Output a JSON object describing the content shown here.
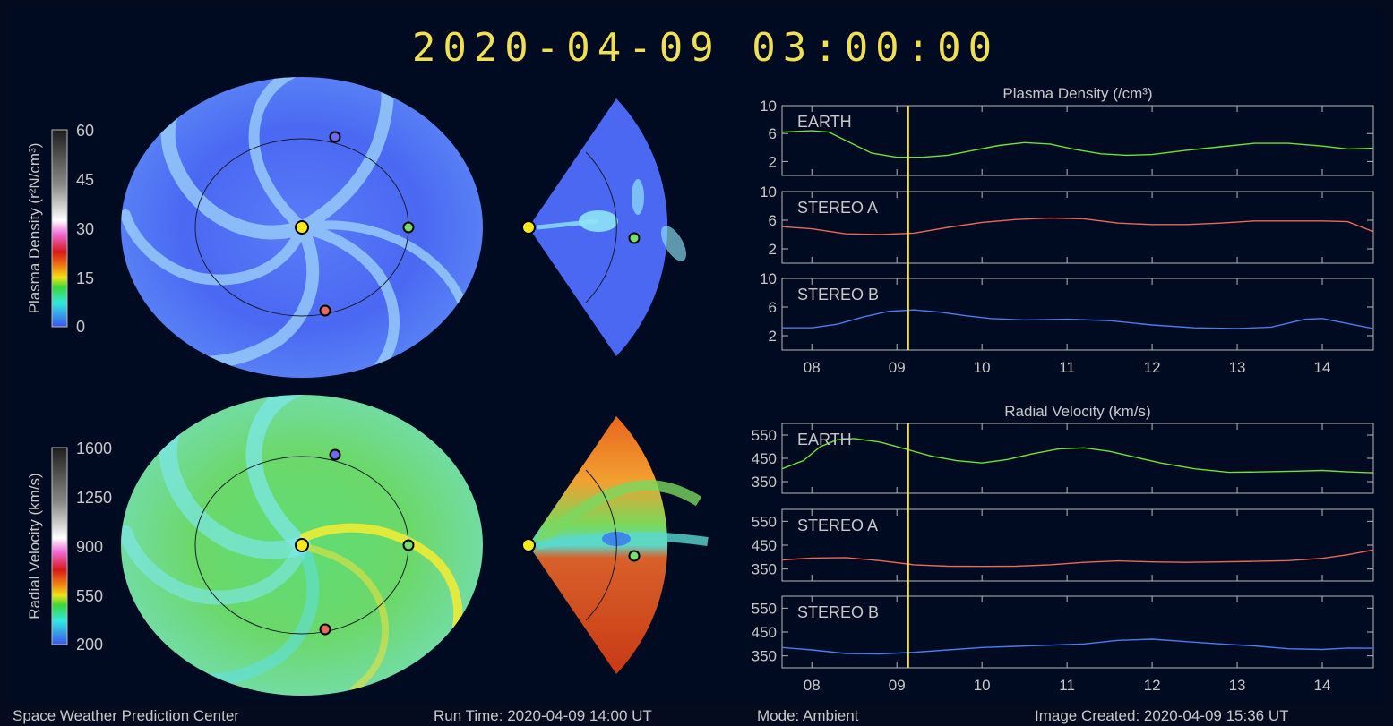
{
  "header": {
    "timestamp": "2020-04-09 03:00:00"
  },
  "colorbars": {
    "density": {
      "label": "Plasma Density (r²N/cm³)",
      "ticks": [
        "60",
        "45",
        "30",
        "15",
        "0"
      ]
    },
    "velocity": {
      "label": "Radial Velocity (km/s)",
      "ticks": [
        "1600",
        "1250",
        "900",
        "550",
        "200"
      ]
    }
  },
  "chart_data": [
    {
      "type": "line",
      "title": "Plasma Density (/cm³)",
      "x_ticks": [
        "08",
        "09",
        "10",
        "11",
        "12",
        "13",
        "14"
      ],
      "xlim": [
        7.65,
        14.6
      ],
      "current_time": 9.13,
      "panels": [
        {
          "name": "EARTH",
          "color": "#6ee23a",
          "ylim": [
            0,
            10
          ],
          "yticks": [
            "10",
            "6",
            "2"
          ],
          "x": [
            7.65,
            7.8,
            8.0,
            8.2,
            8.4,
            8.7,
            9.0,
            9.3,
            9.6,
            9.9,
            10.2,
            10.5,
            10.8,
            11.1,
            11.4,
            11.7,
            12.0,
            12.4,
            12.8,
            13.2,
            13.6,
            14.0,
            14.3,
            14.6
          ],
          "y": [
            6.2,
            6.3,
            6.4,
            6.2,
            5.0,
            3.2,
            2.6,
            2.6,
            2.9,
            3.6,
            4.3,
            4.7,
            4.5,
            3.7,
            3.1,
            2.9,
            3.0,
            3.6,
            4.1,
            4.6,
            4.6,
            4.2,
            3.8,
            3.9
          ]
        },
        {
          "name": "STEREO A",
          "color": "#e86a5a",
          "ylim": [
            0,
            10
          ],
          "yticks": [
            "10",
            "6",
            "2"
          ],
          "x": [
            7.65,
            8.0,
            8.4,
            8.8,
            9.2,
            9.6,
            10.0,
            10.4,
            10.8,
            11.2,
            11.6,
            12.0,
            12.4,
            12.8,
            13.2,
            13.6,
            14.0,
            14.3,
            14.6
          ],
          "y": [
            5.1,
            4.8,
            4.1,
            4.0,
            4.2,
            5.0,
            5.7,
            6.1,
            6.3,
            6.2,
            5.6,
            5.4,
            5.4,
            5.6,
            5.9,
            5.9,
            5.9,
            5.8,
            4.4
          ]
        },
        {
          "name": "STEREO B",
          "color": "#4a7df0",
          "ylim": [
            0,
            10
          ],
          "yticks": [
            "10",
            "6",
            "2"
          ],
          "x": [
            7.65,
            8.0,
            8.3,
            8.6,
            8.9,
            9.2,
            9.5,
            9.8,
            10.1,
            10.5,
            11.0,
            11.5,
            12.0,
            12.5,
            13.0,
            13.4,
            13.8,
            14.0,
            14.3,
            14.6
          ],
          "y": [
            3.1,
            3.1,
            3.6,
            4.6,
            5.4,
            5.6,
            5.3,
            4.8,
            4.4,
            4.2,
            4.3,
            4.1,
            3.5,
            3.1,
            3.0,
            3.2,
            4.3,
            4.4,
            3.7,
            3.0
          ]
        }
      ]
    },
    {
      "type": "line",
      "title": "Radial Velocity (km/s)",
      "x_ticks": [
        "08",
        "09",
        "10",
        "11",
        "12",
        "13",
        "14"
      ],
      "xlim": [
        7.65,
        14.6
      ],
      "current_time": 9.13,
      "panels": [
        {
          "name": "EARTH",
          "color": "#6ee23a",
          "ylim": [
            300,
            600
          ],
          "yticks": [
            "550",
            "450",
            "350"
          ],
          "x": [
            7.65,
            7.9,
            8.1,
            8.3,
            8.5,
            8.8,
            9.1,
            9.4,
            9.7,
            10.0,
            10.3,
            10.6,
            10.9,
            11.2,
            11.5,
            11.8,
            12.1,
            12.5,
            12.9,
            13.3,
            13.7,
            14.0,
            14.3,
            14.6
          ],
          "y": [
            405,
            440,
            500,
            530,
            535,
            520,
            490,
            460,
            440,
            430,
            445,
            470,
            490,
            495,
            480,
            455,
            430,
            405,
            390,
            392,
            395,
            398,
            392,
            388
          ]
        },
        {
          "name": "STEREO A",
          "color": "#e86a5a",
          "ylim": [
            300,
            600
          ],
          "yticks": [
            "550",
            "450",
            "350"
          ],
          "x": [
            7.65,
            8.0,
            8.4,
            8.8,
            9.2,
            9.6,
            10.0,
            10.4,
            10.8,
            11.2,
            11.6,
            12.0,
            12.4,
            12.8,
            13.2,
            13.6,
            14.0,
            14.3,
            14.6
          ],
          "y": [
            388,
            396,
            398,
            385,
            368,
            362,
            361,
            362,
            368,
            378,
            384,
            380,
            378,
            380,
            382,
            385,
            395,
            410,
            430
          ]
        },
        {
          "name": "STEREO B",
          "color": "#4a7df0",
          "ylim": [
            300,
            600
          ],
          "yticks": [
            "550",
            "450",
            "350"
          ],
          "x": [
            7.65,
            8.0,
            8.4,
            8.8,
            9.2,
            9.6,
            10.0,
            10.4,
            10.8,
            11.2,
            11.6,
            12.0,
            12.4,
            12.8,
            13.2,
            13.6,
            14.0,
            14.3,
            14.6
          ],
          "y": [
            385,
            375,
            360,
            358,
            365,
            375,
            385,
            390,
            395,
            400,
            415,
            420,
            410,
            400,
            392,
            380,
            377,
            383,
            382
          ]
        }
      ]
    }
  ],
  "footer": {
    "org": "Space Weather Prediction Center",
    "run_time": "Run Time: 2020-04-09 14:00 UT",
    "mode": "Mode: Ambient",
    "created": "Image Created: 2020-04-09 15:36 UT"
  }
}
